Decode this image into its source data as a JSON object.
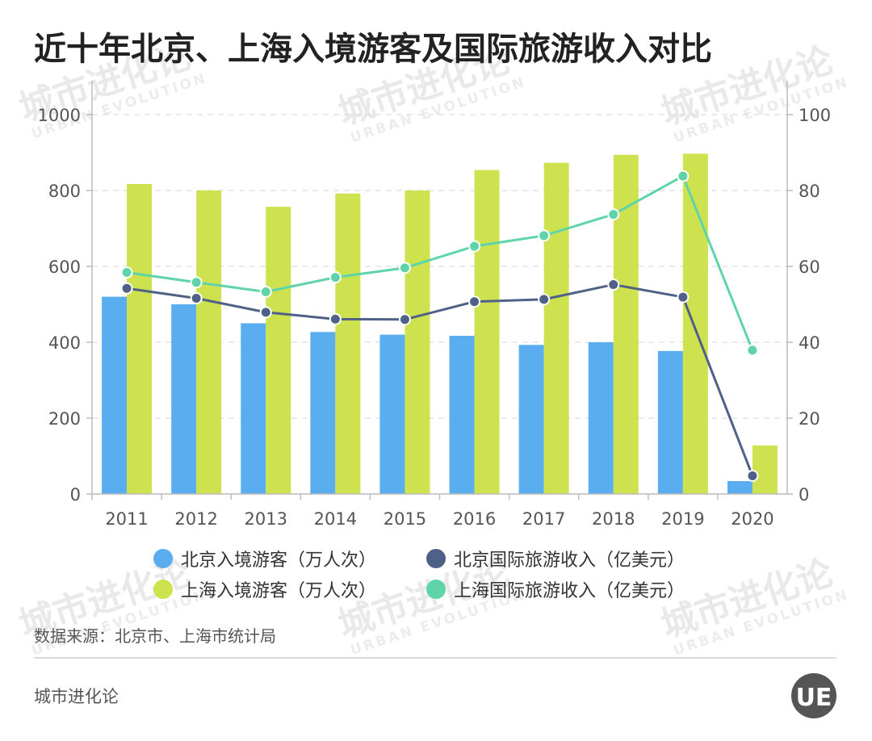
{
  "header": {
    "title": "近十年北京、上海入境游客及国际旅游收入对比"
  },
  "footer": {
    "source": "数据来源：北京市、上海市统计局",
    "brand": "城市进化论"
  },
  "logo": {
    "text": "UE",
    "color": "#555555"
  },
  "watermark": {
    "text_cn": "城市进化论",
    "text_en": "URBAN EVOLUTION"
  },
  "chart_data": {
    "type": "bar",
    "categories": [
      "2011",
      "2012",
      "2013",
      "2014",
      "2015",
      "2016",
      "2017",
      "2018",
      "2019",
      "2020"
    ],
    "y_left": {
      "ylim": [
        0,
        1000
      ],
      "ticks": [
        0,
        200,
        400,
        600,
        800,
        1000
      ]
    },
    "y_right": {
      "ylim": [
        0,
        100
      ],
      "ticks": [
        0,
        20,
        40,
        60,
        80,
        100
      ]
    },
    "grid": true,
    "legend_position": "bottom",
    "series": [
      {
        "name": "北京入境游客（万人次）",
        "kind": "bar",
        "axis": "left",
        "color": "#5aaef0",
        "values": [
          520,
          500,
          450,
          427,
          420,
          417,
          393,
          400,
          377,
          34
        ]
      },
      {
        "name": "上海入境游客（万人次）",
        "kind": "bar",
        "axis": "left",
        "color": "#cde24e",
        "values": [
          817,
          800,
          757,
          792,
          800,
          854,
          873,
          894,
          897,
          128
        ]
      },
      {
        "name": "北京国际旅游收入（亿美元）",
        "kind": "line",
        "axis": "right",
        "color": "#4f6186",
        "values": [
          54.2,
          51.6,
          47.9,
          46.1,
          46.0,
          50.7,
          51.3,
          55.2,
          51.9,
          4.8
        ]
      },
      {
        "name": "上海国际旅游收入（亿美元）",
        "kind": "line",
        "axis": "right",
        "color": "#5fd4a8",
        "values": [
          58.4,
          55.8,
          53.3,
          57.1,
          59.6,
          65.3,
          68.1,
          73.7,
          83.8,
          37.9
        ]
      }
    ]
  }
}
